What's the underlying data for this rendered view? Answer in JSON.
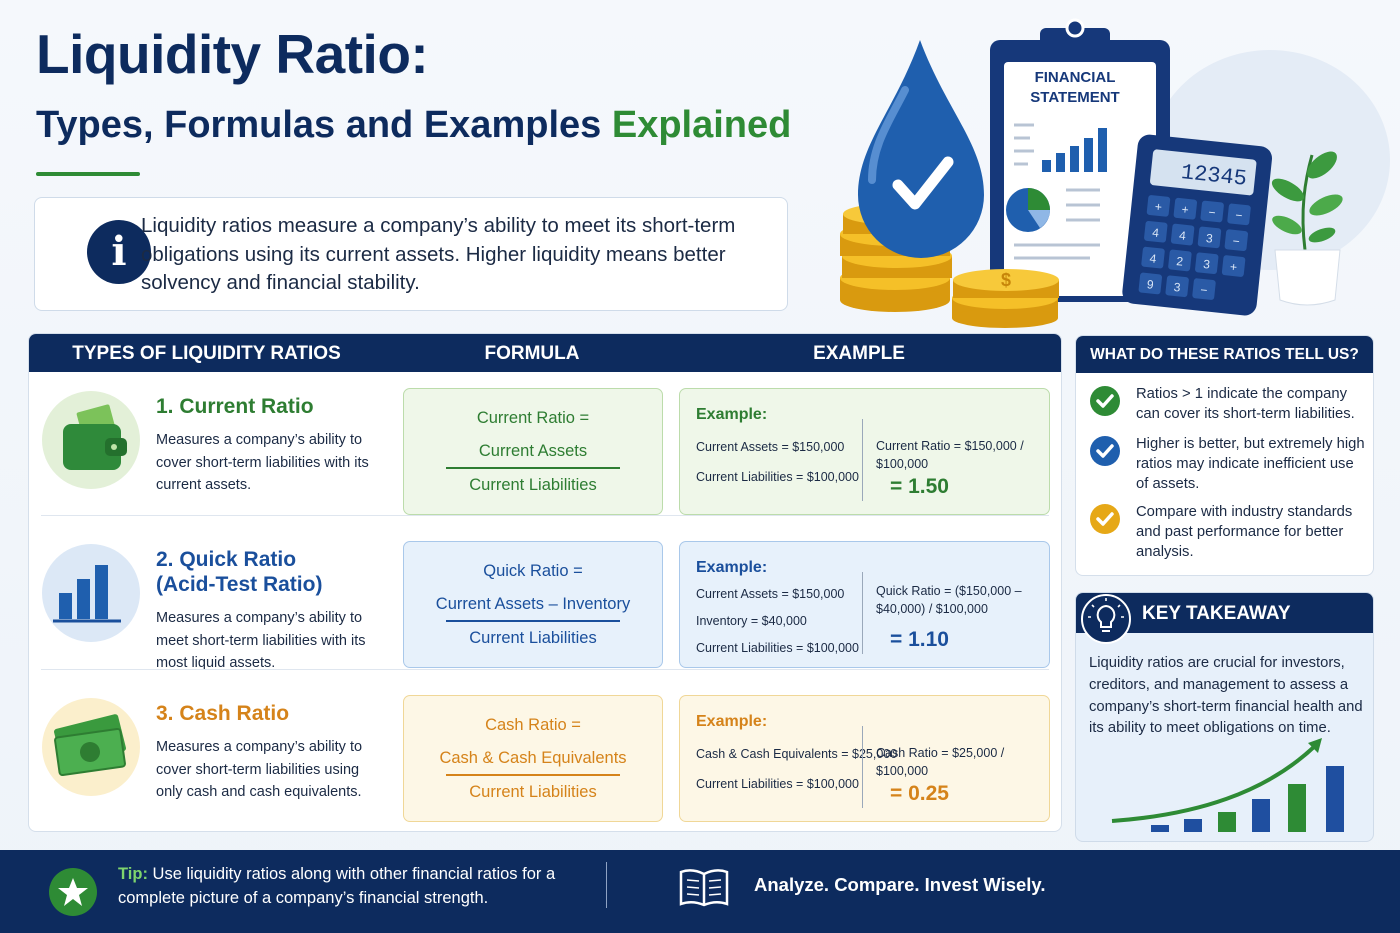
{
  "header": {
    "title": "Liquidity Ratio:",
    "subtitle": "Types, Formulas and Examples",
    "subtitle_highlight": "Explained"
  },
  "intro": {
    "icon": "i",
    "text": "Liquidity ratios measure a company’s ability to meet its short-term obligations using its current assets. Higher liquidity means better solvency and financial stability."
  },
  "illustration": {
    "statement_title": [
      "FINANCIAL",
      "STATEMENT"
    ],
    "calculator_display": "12345",
    "calculator_keys": [
      "+",
      "+",
      "−",
      "−",
      "4",
      "4",
      "3",
      "−",
      "4",
      "2",
      "3",
      "+",
      "9",
      "3",
      "−"
    ],
    "coin_symbol": "$"
  },
  "table": {
    "columns": [
      "TYPES OF LIQUIDITY RATIOS",
      "FORMULA",
      "EXAMPLE"
    ],
    "rows": [
      {
        "name": [
          "1. Current Ratio"
        ],
        "description": "Measures a company’s ability to cover short-term liabilities with its current assets.",
        "formula": {
          "label": "Current Ratio =",
          "numerator": "Current Assets",
          "denominator": "Current Liabilities"
        },
        "example": {
          "heading": "Example:",
          "inputs": [
            "Current Assets = $150,000",
            "Current Liabilities = $100,000"
          ],
          "calculation": "Current Ratio = $150,000 / $100,000",
          "result": "= 1.50"
        }
      },
      {
        "name": [
          "2. Quick Ratio",
          "(Acid-Test Ratio)"
        ],
        "description": "Measures a company’s ability to meet short-term liabilities with its most liquid assets.",
        "formula": {
          "label": "Quick Ratio =",
          "numerator": "Current Assets – Inventory",
          "denominator": "Current Liabilities"
        },
        "example": {
          "heading": "Example:",
          "inputs": [
            "Current Assets = $150,000",
            "Inventory = $40,000",
            "Current Liabilities = $100,000"
          ],
          "calculation": "Quick Ratio = ($150,000 – $40,000) / $100,000",
          "result": "= 1.10"
        }
      },
      {
        "name": [
          "3. Cash Ratio"
        ],
        "description": "Measures a company’s ability to cover short-term liabilities using only cash and cash equivalents.",
        "formula": {
          "label": "Cash Ratio =",
          "numerator": "Cash & Cash Equivalents",
          "denominator": "Current Liabilities"
        },
        "example": {
          "heading": "Example:",
          "inputs": [
            "Cash & Cash Equivalents = $25,000",
            "Current Liabilities = $100,000"
          ],
          "calculation": "Cash Ratio = $25,000 / $100,000",
          "result": "= 0.25"
        }
      }
    ]
  },
  "sidebar": {
    "title": "WHAT DO THESE RATIOS TELL US?",
    "points": [
      "Ratios > 1 indicate the company can cover its short-term liabilities.",
      "Higher is better, but extremely high ratios may indicate inefficient use of assets.",
      "Compare with industry standards and past performance for better analysis."
    ]
  },
  "takeaway": {
    "title": "KEY TAKEAWAY",
    "text": "Liquidity ratios are crucial for investors, creditors, and management to assess a company’s short-term financial health and its ability to meet obligations on time."
  },
  "footer": {
    "tip_label": "Tip:",
    "tip_text": "Use liquidity ratios along with other financial ratios for a complete picture of a company’s financial strength.",
    "slogan": "Analyze. Compare. Invest Wisely."
  }
}
